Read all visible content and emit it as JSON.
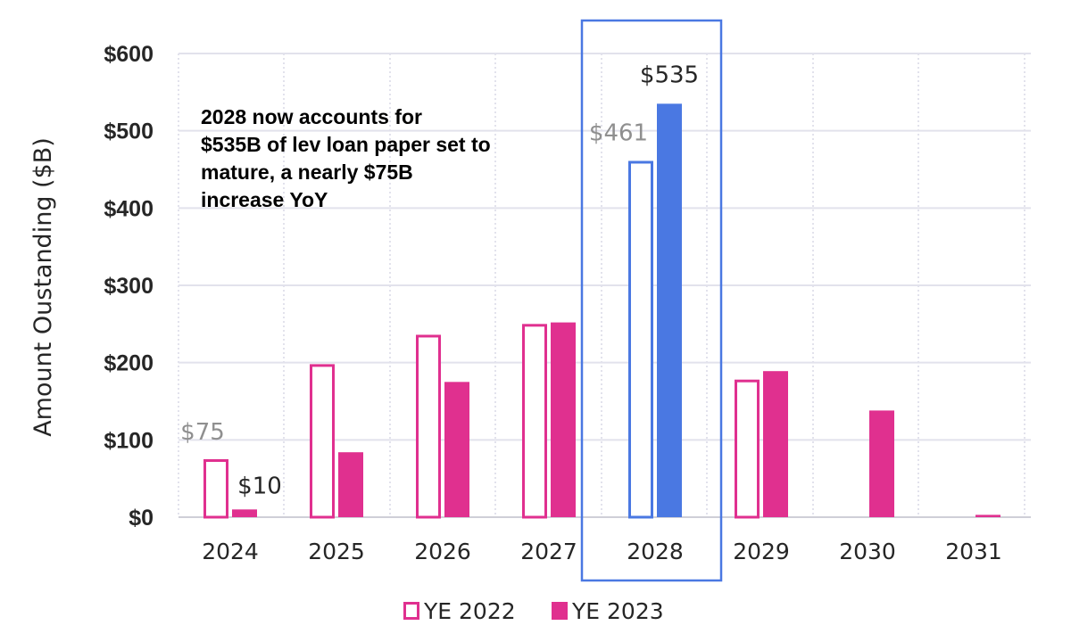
{
  "chart_data": {
    "type": "bar",
    "categories": [
      "2024",
      "2025",
      "2026",
      "2027",
      "2028",
      "2029",
      "2030",
      "2031"
    ],
    "series": [
      {
        "name": "YE 2022",
        "style": "outline",
        "values": [
          75,
          198,
          236,
          250,
          461,
          178,
          0,
          0
        ]
      },
      {
        "name": "YE 2023",
        "style": "filled",
        "values": [
          10,
          84,
          175,
          252,
          535,
          189,
          138,
          3
        ]
      }
    ],
    "highlight_category": "2028",
    "highlight_fill": "#4a78e2",
    "data_labels": [
      {
        "category": "2024",
        "series": "YE 2022",
        "text": "$75"
      },
      {
        "category": "2024",
        "series": "YE 2023",
        "text": "$10"
      },
      {
        "category": "2028",
        "series": "YE 2022",
        "text": "$461"
      },
      {
        "category": "2028",
        "series": "YE 2023",
        "text": "$535"
      }
    ],
    "annotation": "2028 now accounts for $535B of lev loan paper set to mature, a nearly $75B increase YoY",
    "ylabel": "Amount Oustanding ($B)",
    "xlabel": "",
    "ylim": [
      0,
      600
    ],
    "yticks": [
      0,
      100,
      200,
      300,
      400,
      500,
      600
    ],
    "ytick_labels": [
      "$0",
      "$100",
      "$200",
      "$300",
      "$400",
      "$500",
      "$600"
    ],
    "grid": true,
    "legend_position": "bottom",
    "colors": {
      "ye2022_outline": "#e0308f",
      "ye2023": "#e0308f",
      "highlight": "#4a78e2",
      "grid": "#e2e2ec",
      "muted_label": "#8f8f8f",
      "dark_label": "#262626"
    }
  }
}
